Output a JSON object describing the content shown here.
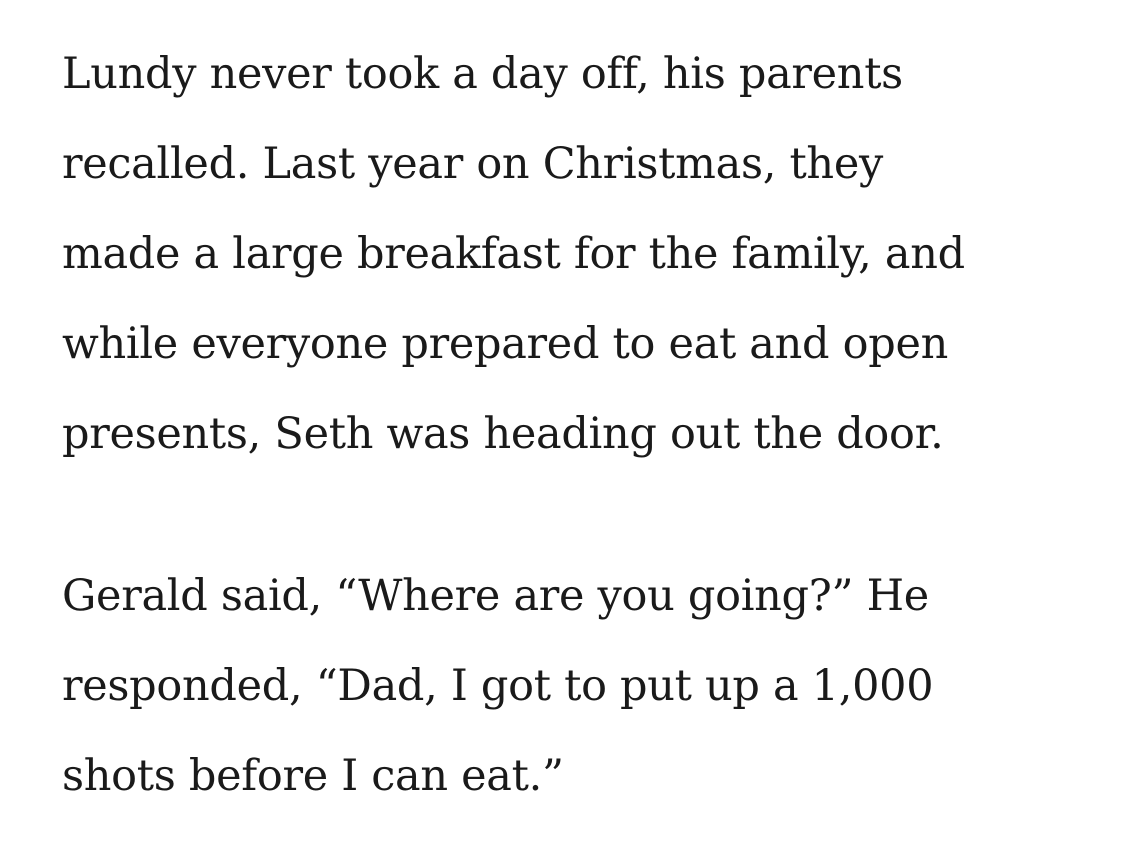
{
  "article": {
    "background_color": "#ffffff",
    "text_color": "#1a1a1a",
    "paragraphs": [
      {
        "text": "Lundy never took a day off, his parents recalled. Last year on Christmas, they made a large breakfast for the family, and while everyone prepared to eat and open presents, Seth was heading out the door.",
        "lines": [
          "Lundy never took a day off, his parents",
          "recalled. Last year on Christmas, they",
          "made a large breakfast for the family, and",
          "while everyone prepared to eat and open",
          "presents, Seth was heading out the door."
        ]
      },
      {
        "text": "Gerald said, “Where are you going?” He responded, “Dad, I got to put up a 1,000 shots before I can eat.”",
        "lines": [
          "Gerald said, “Where are you going?” He",
          "responded, “Dad, I got to put up a 1,000",
          "shots before I can eat.”"
        ]
      }
    ]
  }
}
